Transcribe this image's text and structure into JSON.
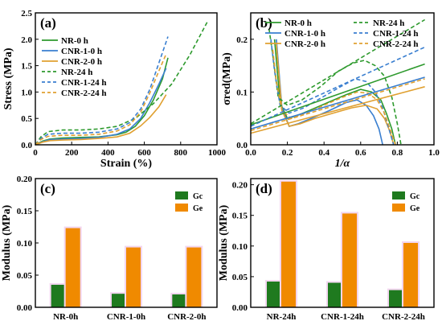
{
  "chart_data": [
    {
      "panel": "(a)",
      "type": "line",
      "xlabel": "Strain (%)",
      "ylabel": "Stress (MPa)",
      "xlim": [
        0,
        1000
      ],
      "ylim": [
        0,
        2.5
      ],
      "xticks": [
        "0",
        "200",
        "400",
        "600",
        "800",
        "1000"
      ],
      "yticks": [
        "0.0",
        "0.5",
        "1.0",
        "1.5",
        "2.0",
        "2.5"
      ],
      "legend": "top-left",
      "series": [
        {
          "name": "NR-0 h",
          "color": "#2e9a2e",
          "dash": false,
          "x": [
            0,
            40,
            80,
            150,
            250,
            350,
            450,
            500,
            550,
            600,
            650,
            700,
            730
          ],
          "y": [
            0,
            0.07,
            0.11,
            0.13,
            0.14,
            0.15,
            0.19,
            0.24,
            0.35,
            0.55,
            0.85,
            1.25,
            1.65
          ]
        },
        {
          "name": "CNR-1-0 h",
          "color": "#3a7fd0",
          "dash": false,
          "x": [
            0,
            40,
            80,
            150,
            250,
            350,
            450,
            520,
            580,
            630,
            680,
            720
          ],
          "y": [
            0,
            0.06,
            0.1,
            0.11,
            0.12,
            0.14,
            0.2,
            0.3,
            0.5,
            0.8,
            1.15,
            1.45
          ]
        },
        {
          "name": "CNR-2-0 h",
          "color": "#e0a030",
          "dash": false,
          "x": [
            0,
            40,
            80,
            150,
            250,
            350,
            450,
            520,
            580,
            630,
            680,
            720
          ],
          "y": [
            0,
            0.05,
            0.08,
            0.09,
            0.1,
            0.12,
            0.15,
            0.22,
            0.36,
            0.52,
            0.72,
            0.95
          ]
        },
        {
          "name": "NR-24 h",
          "color": "#2e9a2e",
          "dash": true,
          "x": [
            0,
            30,
            70,
            150,
            250,
            350,
            450,
            550,
            650,
            750,
            850,
            950
          ],
          "y": [
            0,
            0.15,
            0.25,
            0.28,
            0.28,
            0.3,
            0.35,
            0.5,
            0.78,
            1.15,
            1.7,
            2.35
          ]
        },
        {
          "name": "CNR-1-24 h",
          "color": "#3a7fd0",
          "dash": true,
          "x": [
            0,
            30,
            70,
            150,
            250,
            350,
            450,
            520,
            580,
            630,
            680,
            730
          ],
          "y": [
            0,
            0.12,
            0.2,
            0.22,
            0.22,
            0.24,
            0.3,
            0.42,
            0.68,
            1.05,
            1.55,
            2.05
          ]
        },
        {
          "name": "CNR-2-24 h",
          "color": "#e0a030",
          "dash": true,
          "x": [
            0,
            30,
            70,
            150,
            250,
            350,
            450,
            520,
            580,
            630,
            680,
            720
          ],
          "y": [
            0,
            0.1,
            0.16,
            0.18,
            0.18,
            0.2,
            0.26,
            0.38,
            0.62,
            0.98,
            1.4,
            1.72
          ]
        }
      ]
    },
    {
      "panel": "(b)",
      "type": "line",
      "xlabel": "1/α",
      "ylabel": "σred(MPa)",
      "xlim": [
        0,
        1
      ],
      "ylim": [
        0,
        0.25
      ],
      "xticks": [
        "0.0",
        "0.2",
        "0.4",
        "0.6",
        "0.8",
        "1.0"
      ],
      "yticks": [
        "0.0",
        "0.1",
        "0.2"
      ],
      "legend": "top",
      "series": [
        {
          "name": "NR-0 h",
          "color": "#2e9a2e",
          "dash": false,
          "x": [
            0.13,
            0.16,
            0.2,
            0.25,
            0.32,
            0.42,
            0.52,
            0.6,
            0.66,
            0.71,
            0.74,
            0.77,
            0.79
          ],
          "y": [
            0.2,
            0.08,
            0.05,
            0.055,
            0.065,
            0.08,
            0.095,
            0.105,
            0.1,
            0.085,
            0.06,
            0.03,
            0.0
          ]
        },
        {
          "name": "CNR-1-0 h",
          "color": "#3a7fd0",
          "dash": false,
          "x": [
            0.14,
            0.17,
            0.21,
            0.26,
            0.33,
            0.43,
            0.52,
            0.58,
            0.63,
            0.67,
            0.7,
            0.72
          ],
          "y": [
            0.2,
            0.07,
            0.035,
            0.04,
            0.05,
            0.065,
            0.08,
            0.085,
            0.075,
            0.055,
            0.03,
            0.0
          ]
        },
        {
          "name": "CNR-2-0 h",
          "color": "#e0a030",
          "dash": false,
          "x": [
            0.14,
            0.17,
            0.21,
            0.27,
            0.35,
            0.45,
            0.55,
            0.63,
            0.69,
            0.73,
            0.76,
            0.78
          ],
          "y": [
            0.19,
            0.065,
            0.035,
            0.04,
            0.05,
            0.06,
            0.07,
            0.075,
            0.068,
            0.05,
            0.025,
            0.0
          ]
        },
        {
          "name": "NR-24 h",
          "color": "#2e9a2e",
          "dash": true,
          "x": [
            0.1,
            0.12,
            0.15,
            0.2,
            0.28,
            0.38,
            0.48,
            0.56,
            0.62,
            0.68,
            0.73,
            0.77,
            0.8,
            0.82
          ],
          "y": [
            0.22,
            0.17,
            0.09,
            0.075,
            0.085,
            0.11,
            0.14,
            0.155,
            0.16,
            0.15,
            0.13,
            0.09,
            0.04,
            0.0
          ]
        },
        {
          "name": "CNR-1-24 h",
          "color": "#3a7fd0",
          "dash": true,
          "x": [
            0.11,
            0.13,
            0.16,
            0.21,
            0.29,
            0.39,
            0.49,
            0.57,
            0.63,
            0.68,
            0.72,
            0.75,
            0.78
          ],
          "y": [
            0.2,
            0.14,
            0.075,
            0.06,
            0.07,
            0.09,
            0.11,
            0.125,
            0.12,
            0.1,
            0.07,
            0.035,
            0.0
          ]
        },
        {
          "name": "CNR-2-24 h",
          "color": "#e0a030",
          "dash": true,
          "x": [
            0.12,
            0.14,
            0.17,
            0.22,
            0.3,
            0.4,
            0.5,
            0.58,
            0.64,
            0.69,
            0.73,
            0.76,
            0.79
          ],
          "y": [
            0.18,
            0.12,
            0.065,
            0.05,
            0.06,
            0.075,
            0.09,
            0.1,
            0.098,
            0.085,
            0.06,
            0.03,
            0.0
          ]
        },
        {
          "name": "",
          "color": "#2e9a2e",
          "dash": false,
          "x": [
            0,
            0.95
          ],
          "y": [
            0.038,
            0.153
          ]
        },
        {
          "name": "",
          "color": "#2e9a2e",
          "dash": true,
          "x": [
            0,
            0.95
          ],
          "y": [
            0.04,
            0.237
          ]
        },
        {
          "name": "",
          "color": "#3a7fd0",
          "dash": false,
          "x": [
            0,
            0.95
          ],
          "y": [
            0.03,
            0.128
          ]
        },
        {
          "name": "",
          "color": "#3a7fd0",
          "dash": true,
          "x": [
            0,
            0.95
          ],
          "y": [
            0.035,
            0.185
          ]
        },
        {
          "name": "",
          "color": "#e0a030",
          "dash": false,
          "x": [
            0,
            0.95
          ],
          "y": [
            0.022,
            0.11
          ]
        },
        {
          "name": "",
          "color": "#e0a030",
          "dash": true,
          "x": [
            0,
            0.95
          ],
          "y": [
            0.027,
            0.125
          ]
        }
      ]
    },
    {
      "panel": "(c)",
      "type": "bar",
      "ylabel": "Modulus (MPa)",
      "ylim": [
        0,
        0.2
      ],
      "yticks": [
        "0.00",
        "0.05",
        "0.10",
        "0.15",
        "0.20"
      ],
      "categories": [
        "NR-0h",
        "CNR-1-0h",
        "CNR-2-0h"
      ],
      "legend": "top-right",
      "series": [
        {
          "name": "Gc",
          "color": "#1f7a1f",
          "values": [
            0.035,
            0.021,
            0.02
          ]
        },
        {
          "name": "Ge",
          "color": "#f08a00",
          "values": [
            0.123,
            0.093,
            0.093
          ]
        }
      ]
    },
    {
      "panel": "(d)",
      "type": "bar",
      "ylabel": "Modulus (MPa)",
      "ylim": [
        0,
        0.21
      ],
      "yticks": [
        "0.00",
        "0.05",
        "0.10",
        "0.15",
        "0.20"
      ],
      "categories": [
        "NR-24h",
        "CNR-1-24h",
        "CNR-2-24h"
      ],
      "legend": "top-right",
      "series": [
        {
          "name": "Gc",
          "color": "#1f7a1f",
          "values": [
            0.042,
            0.04,
            0.028
          ]
        },
        {
          "name": "Ge",
          "color": "#f08a00",
          "values": [
            0.205,
            0.153,
            0.105
          ]
        }
      ]
    }
  ]
}
